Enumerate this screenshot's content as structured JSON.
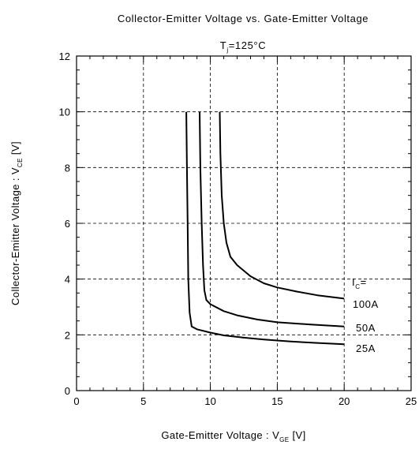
{
  "chart_data": {
    "type": "line",
    "title": "Collector-Emitter Voltage vs. Gate-Emitter Voltage",
    "subtitle": {
      "main": "T",
      "sub": "j",
      "rest": "=125°C"
    },
    "xlabel": {
      "main": "Gate-Emitter Voltage  :  V",
      "sub": "GE",
      "rest": "  [V]"
    },
    "ylabel": {
      "main": "Collector-Emitter Voltage  :  V",
      "sub": "CE",
      "rest": "  [V]"
    },
    "xlim": [
      0,
      25
    ],
    "ylim": [
      0,
      12
    ],
    "xticks": [
      0,
      5,
      10,
      15,
      20,
      25
    ],
    "yticks": [
      0,
      2,
      4,
      6,
      8,
      10,
      12
    ],
    "grid": true,
    "legend_header": {
      "main": "I",
      "sub": "C",
      "rest": "="
    },
    "series": [
      {
        "name": "100A",
        "x": [
          10.7,
          10.75,
          10.85,
          11.0,
          11.2,
          11.5,
          12.0,
          13.0,
          14.0,
          15.0,
          16.5,
          18.0,
          20.0
        ],
        "y": [
          10.0,
          8.5,
          7.0,
          6.0,
          5.3,
          4.8,
          4.5,
          4.1,
          3.85,
          3.7,
          3.55,
          3.42,
          3.3
        ]
      },
      {
        "name": "50A",
        "x": [
          9.2,
          9.25,
          9.35,
          9.45,
          9.55,
          9.7,
          10.0,
          11.0,
          12.0,
          13.5,
          15.0,
          17.5,
          20.0
        ],
        "y": [
          10.0,
          8.0,
          6.0,
          4.5,
          3.6,
          3.25,
          3.1,
          2.85,
          2.7,
          2.55,
          2.45,
          2.37,
          2.3
        ]
      },
      {
        "name": "25A",
        "x": [
          8.2,
          8.25,
          8.3,
          8.35,
          8.45,
          8.6,
          9.0,
          10.0,
          11.0,
          12.5,
          14.0,
          16.0,
          18.0,
          20.0
        ],
        "y": [
          10.0,
          8.0,
          6.0,
          4.0,
          2.8,
          2.3,
          2.2,
          2.08,
          1.98,
          1.9,
          1.83,
          1.76,
          1.71,
          1.66
        ]
      }
    ]
  }
}
